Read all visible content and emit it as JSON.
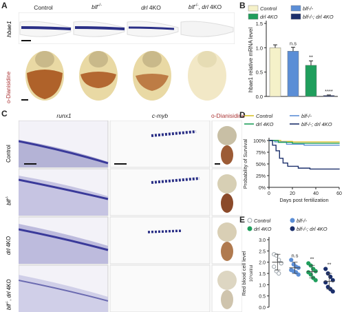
{
  "panel_letters": {
    "a": "A",
    "b": "B",
    "c": "C",
    "d": "D",
    "e": "E"
  },
  "panel_a": {
    "columns": [
      "Control",
      "blf",
      "drl 4KO",
      "blf , drl 4KO"
    ],
    "column_sup": "-/-",
    "rows": [
      "hbae1",
      "o-Dianisidine"
    ],
    "colors": {
      "stain_blue": "#2a2f86",
      "stain_brown": "#a9541d",
      "yolk": "#e9d9a4"
    }
  },
  "panel_c": {
    "columns": [
      "runx1",
      "c-myb",
      "o-Dianisidine"
    ],
    "rows": [
      "Control",
      "blf",
      "drl 4KO",
      "blf , drl 4KO"
    ],
    "row_sup": "-/-"
  },
  "chart_data": [
    {
      "type": "bar",
      "panel": "B",
      "categories": [
        "Control",
        "blf-/-",
        "drl 4KO",
        "blf-/-; drl 4KO"
      ],
      "values": [
        1.0,
        0.93,
        0.64,
        0.02
      ],
      "errors": [
        0.06,
        0.08,
        0.09,
        0.01
      ],
      "colors": [
        "#f5f1c9",
        "#5b8ed6",
        "#1f9e5c",
        "#1b2f6b"
      ],
      "ylabel": "hbae1 relative mRNA level",
      "ylim": [
        0,
        1.5
      ],
      "yticks": [
        "0.0",
        "0.5",
        "1.0",
        "1.5"
      ],
      "annotations": [
        "n.s",
        "**",
        "****"
      ],
      "legend": [
        "Control",
        "blf-/-",
        "drl 4KO",
        "blf-/-; drl 4KO"
      ]
    },
    {
      "type": "line",
      "panel": "D",
      "xlabel": "Days post fertilization",
      "ylabel": "Probability of Survival",
      "xlim": [
        0,
        60
      ],
      "ylim": [
        0,
        100
      ],
      "xticks": [
        "0",
        "20",
        "40",
        "60"
      ],
      "yticks": [
        "0%",
        "25%",
        "50%",
        "75%",
        "100%"
      ],
      "series": [
        {
          "name": "Control",
          "color": "#d9c12a",
          "points": [
            [
              0,
              100
            ],
            [
              10,
              98
            ],
            [
              20,
              97
            ],
            [
              60,
              96
            ]
          ]
        },
        {
          "name": "blf-/-",
          "color": "#5b8ed6",
          "points": [
            [
              0,
              100
            ],
            [
              5,
              97
            ],
            [
              15,
              92
            ],
            [
              30,
              90
            ],
            [
              60,
              89
            ]
          ]
        },
        {
          "name": "drl 4KO",
          "color": "#1f9e5c",
          "points": [
            [
              0,
              100
            ],
            [
              8,
              96
            ],
            [
              20,
              94
            ],
            [
              60,
              93
            ]
          ]
        },
        {
          "name": "blf-/-; drl 4KO",
          "color": "#1b2f6b",
          "points": [
            [
              0,
              100
            ],
            [
              3,
              90
            ],
            [
              6,
              78
            ],
            [
              9,
              62
            ],
            [
              12,
              52
            ],
            [
              16,
              45
            ],
            [
              25,
              41
            ],
            [
              35,
              39
            ],
            [
              60,
              38
            ]
          ]
        }
      ]
    },
    {
      "type": "scatter",
      "panel": "E",
      "categories": [
        "Control",
        "blf-/-",
        "drl 4KO",
        "blf-/-; drl 4KO"
      ],
      "ylabel": "Red blood cell level",
      "ylabel2": "10⁶cell/ul",
      "ylim": [
        0,
        3
      ],
      "yticks": [
        "0.0",
        "0.5",
        "1.0",
        "1.5",
        "2.0",
        "2.5",
        "3.0"
      ],
      "means": [
        2.0,
        1.75,
        1.58,
        1.15
      ],
      "sds": [
        0.35,
        0.25,
        0.28,
        0.35
      ],
      "points": [
        [
          2.35,
          2.3,
          2.1,
          1.95,
          1.8,
          1.6,
          1.5,
          1.95
        ],
        [
          2.1,
          1.9,
          1.8,
          1.75,
          1.65,
          1.6,
          1.55,
          1.45
        ],
        [
          1.95,
          1.85,
          1.7,
          1.6,
          1.55,
          1.45,
          1.3,
          1.2
        ],
        [
          1.7,
          1.5,
          1.35,
          1.2,
          1.1,
          0.9,
          0.8,
          0.7
        ]
      ],
      "colors": [
        "#9aa3aa",
        "#5b8ed6",
        "#1f9e5c",
        "#1b2f6b"
      ],
      "annotations": [
        "n.s",
        "**",
        "**"
      ],
      "legend": [
        "Control",
        "blf-/-",
        "drl 4KO",
        "blf-/-; drl 4KO"
      ]
    }
  ]
}
